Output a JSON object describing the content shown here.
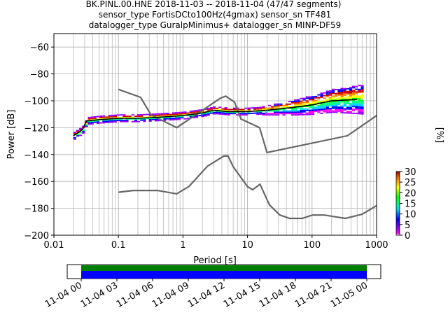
{
  "title_lines": [
    "BK.PINL.00.HNE   2018-11-03 -- 2018-11-04  (47/47 segments)",
    "sensor_type FortisDCto100Hz(4gmax) sensor_sn TF481",
    "datalogger_type GuralpMinimus+ datalogger_sn MINP-DF59"
  ],
  "chart_data": [
    {
      "type": "heatmap",
      "subtype": "probabilistic-power-spectral-density",
      "xlabel": "Period [s]",
      "ylabel": "Power [dB]",
      "xscale": "log",
      "xlim": [
        0.01,
        1000
      ],
      "ylim": [
        -200,
        -50
      ],
      "x_ticks": [
        0.01,
        0.1,
        1,
        10,
        100,
        1000
      ],
      "x_tick_labels": [
        "0.01",
        "0.1",
        "1",
        "10",
        "100",
        "1000"
      ],
      "y_ticks": [
        -200,
        -180,
        -160,
        -140,
        -120,
        -100,
        -80,
        -60
      ],
      "y_tick_labels": [
        "−200",
        "−180",
        "−160",
        "−140",
        "−120",
        "−100",
        "−80",
        "−60"
      ],
      "grid": "on (log minor grid on x)",
      "colorbar": {
        "label": "[%]",
        "range": [
          0,
          30
        ],
        "ticks": [
          0,
          5,
          10,
          15,
          20,
          25,
          30
        ],
        "tick_labels": [
          "0",
          "5",
          "10",
          "15",
          "20",
          "25",
          "30"
        ]
      },
      "noise_models": [
        {
          "x": [
            0.1,
            0.17,
            0.4,
            0.8,
            1.24,
            2.4,
            4.3,
            5.0,
            6.0,
            10,
            12,
            15.6,
            21.9,
            31.6,
            45,
            70,
            101,
            154,
            328,
            600,
            1000
          ],
          "y": [
            -168.0,
            -166.7,
            -166.7,
            -169.2,
            -163.7,
            -148.6,
            -141.1,
            -141.1,
            -149.0,
            -163.8,
            -166.2,
            -162.1,
            -177.5,
            -185.0,
            -187.5,
            -187.5,
            -185.0,
            -185.0,
            -187.5,
            -184.4,
            -178.0
          ]
        },
        {
          "x": [
            0.1,
            0.22,
            0.32,
            0.8,
            3.8,
            4.6,
            6.3,
            7.9,
            15.4,
            20,
            354,
            1000
          ],
          "y": [
            -91.5,
            -97.4,
            -110.5,
            -120.0,
            -98.0,
            -96.5,
            -101.0,
            -113.5,
            -120.0,
            -138.5,
            -126.0,
            -111.0
          ]
        }
      ],
      "mode_curve": {
        "x": [
          0.02,
          0.025,
          0.028,
          0.032,
          0.05,
          0.1,
          0.2,
          0.5,
          1,
          2,
          3,
          5,
          10,
          20,
          50,
          100,
          200,
          500
        ],
        "y": [
          -126,
          -123,
          -121,
          -115,
          -114,
          -113,
          -113,
          -112,
          -111,
          -109,
          -107,
          -108,
          -108,
          -107,
          -105,
          -103,
          -100,
          -99
        ]
      },
      "pdf_spread_note": "colored pixels at 0.02-1000 s, roughly -128 dB to -88 dB, widest above 100 s"
    },
    {
      "type": "timeline",
      "description": "data coverage bar",
      "xlim": [
        "2018-11-04 00:00",
        "2018-11-05 00:00"
      ],
      "x_tick_labels": [
        "11-04 00",
        "11-04 03",
        "11-04 06",
        "11-04 09",
        "11-04 12",
        "11-04 15",
        "11-04 18",
        "11-04 21",
        "11-05 00"
      ],
      "coverage": [
        {
          "start": "2018-11-04 00:00",
          "end": "2018-11-05 00:00",
          "colors": [
            "#008000",
            "#0000ff"
          ]
        }
      ]
    }
  ]
}
